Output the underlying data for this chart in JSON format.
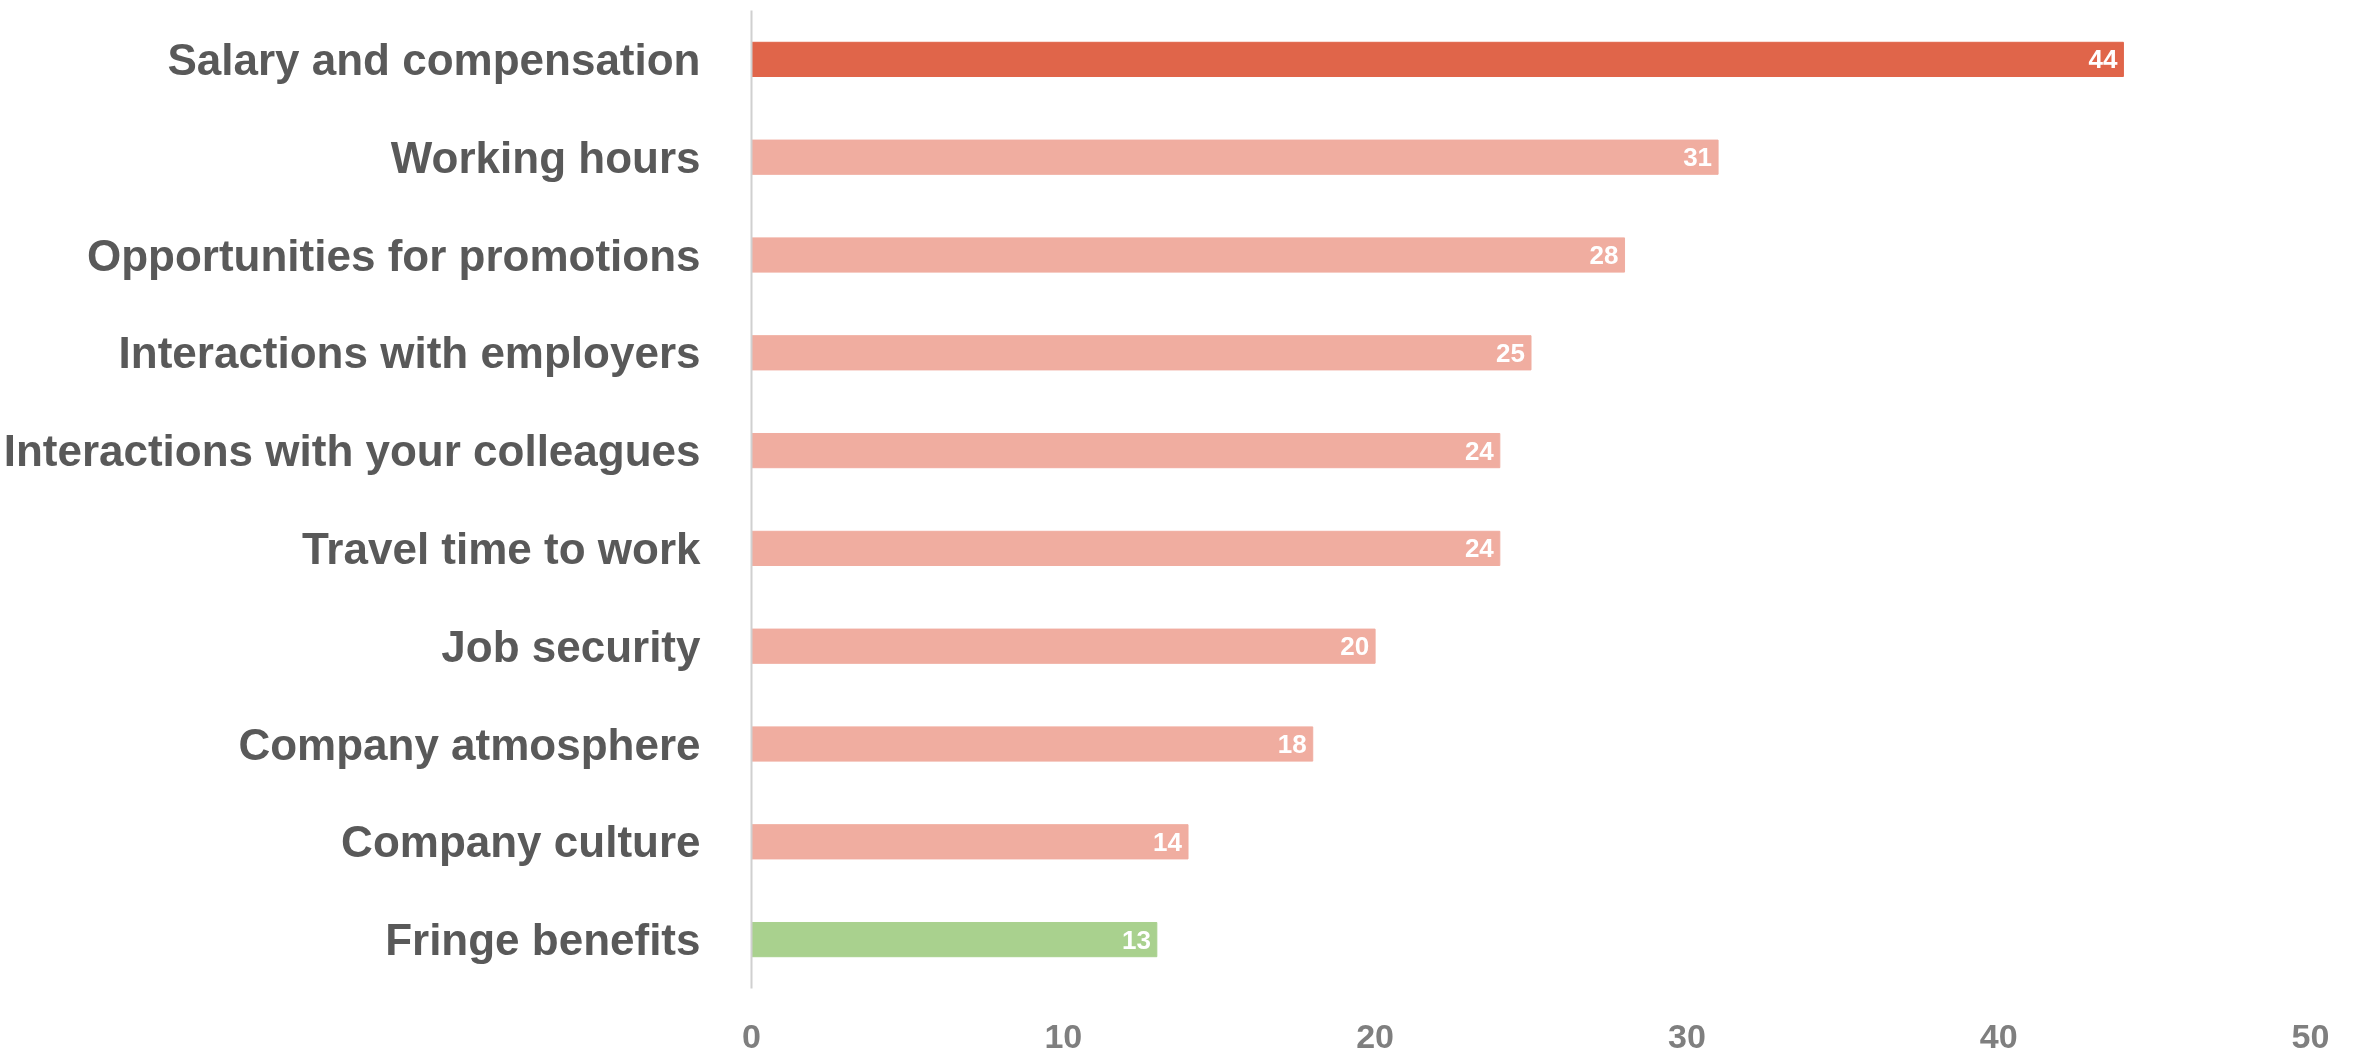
{
  "chart_data": {
    "type": "bar",
    "orientation": "horizontal",
    "categories": [
      "Salary and compensation",
      "Working hours",
      "Opportunities for promotions",
      "Interactions with employers",
      "Interactions with your colleagues",
      "Travel time to work",
      "Job security",
      "Company atmosphere",
      "Company culture",
      "Fringe benefits"
    ],
    "values": [
      44,
      31,
      28,
      25,
      24,
      24,
      20,
      18,
      14,
      13
    ],
    "colors": [
      "#e0654a",
      "#f0ada0",
      "#f0ada0",
      "#f0ada0",
      "#f0ada0",
      "#f0ada0",
      "#f0ada0",
      "#f0ada0",
      "#f0ada0",
      "#a9d18e"
    ],
    "xlim": [
      0,
      50
    ],
    "xticks": [
      0,
      10,
      20,
      30,
      40,
      50
    ],
    "data_labels": true,
    "grid": false
  }
}
